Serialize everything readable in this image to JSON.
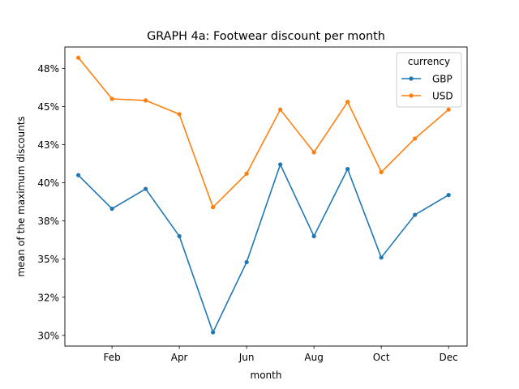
{
  "chart_data": {
    "type": "line",
    "title": "GRAPH 4a: Footwear discount per month",
    "xlabel": "month",
    "ylabel": "mean of the maximum discounts",
    "x": [
      1,
      2,
      3,
      4,
      5,
      6,
      7,
      8,
      9,
      10,
      11,
      12
    ],
    "xticks": [
      {
        "value": 2,
        "label": "Feb"
      },
      {
        "value": 4,
        "label": "Apr"
      },
      {
        "value": 6,
        "label": "Jun"
      },
      {
        "value": 8,
        "label": "Aug"
      },
      {
        "value": 10,
        "label": "Oct"
      },
      {
        "value": 12,
        "label": "Dec"
      }
    ],
    "yticks": [
      {
        "value": 30.0,
        "label": "30%"
      },
      {
        "value": 32.5,
        "label": "32%"
      },
      {
        "value": 35.0,
        "label": "35%"
      },
      {
        "value": 37.5,
        "label": "38%"
      },
      {
        "value": 40.0,
        "label": "40%"
      },
      {
        "value": 42.5,
        "label": "43%"
      },
      {
        "value": 45.0,
        "label": "45%"
      },
      {
        "value": 47.5,
        "label": "48%"
      }
    ],
    "xlim": [
      0.6,
      12.55
    ],
    "ylim": [
      29.3,
      48.9
    ],
    "grid": false,
    "legend": {
      "title": "currency",
      "position": "top-right"
    },
    "series": [
      {
        "name": "GBP",
        "color": "#1f77b4",
        "values": [
          40.5,
          38.3,
          39.6,
          36.5,
          30.2,
          34.8,
          41.2,
          36.5,
          40.9,
          35.1,
          37.9,
          39.2
        ]
      },
      {
        "name": "USD",
        "color": "#ff7f0e",
        "values": [
          48.2,
          45.5,
          45.4,
          44.5,
          38.4,
          40.6,
          44.8,
          42.0,
          45.3,
          40.7,
          42.9,
          44.8
        ]
      }
    ]
  }
}
